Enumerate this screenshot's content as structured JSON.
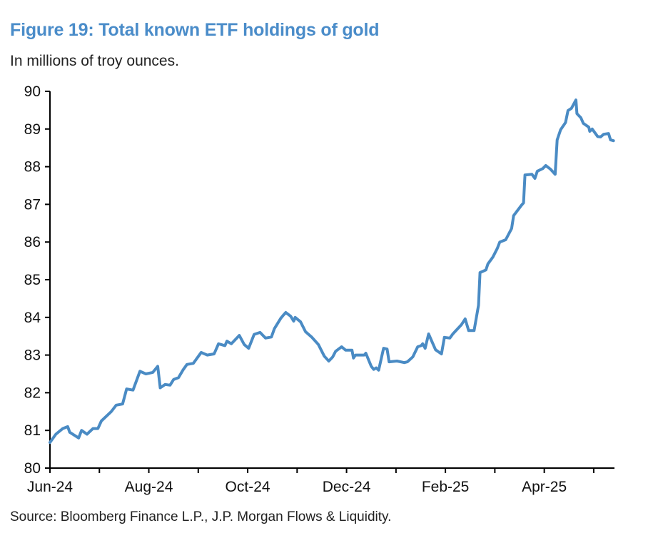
{
  "chart_data": {
    "type": "line",
    "title": "Figure 19: Total known ETF holdings of gold",
    "subtitle": "In millions of troy ounces.",
    "source": "Source: Bloomberg Finance L.P., J.P. Morgan Flows & Liquidity.",
    "xlabel": "",
    "ylabel": "",
    "x_unit": "months since Jun-24",
    "xlim": [
      0,
      11.42
    ],
    "ylim": [
      80,
      90
    ],
    "grid": false,
    "legend": "none",
    "line_color": "#4a8bc4",
    "title_color": "#4a8cc9",
    "y_ticks": [
      "80",
      "81",
      "82",
      "83",
      "84",
      "85",
      "86",
      "87",
      "88",
      "89",
      "90"
    ],
    "x_ticks": [
      {
        "value": 0,
        "label": "Jun-24"
      },
      {
        "value": 2,
        "label": "Aug-24"
      },
      {
        "value": 4,
        "label": "Oct-24"
      },
      {
        "value": 6,
        "label": "Dec-24"
      },
      {
        "value": 8,
        "label": "Feb-25"
      },
      {
        "value": 10,
        "label": "Apr-25"
      }
    ],
    "series": [
      {
        "name": "Total known ETF holdings of gold",
        "x": [
          0,
          0.12,
          0.26,
          0.36,
          0.4,
          0.58,
          0.64,
          0.75,
          0.87,
          0.97,
          1.04,
          1.24,
          1.34,
          1.47,
          1.55,
          1.68,
          1.82,
          1.94,
          2.08,
          2.18,
          2.23,
          2.33,
          2.43,
          2.5,
          2.6,
          2.69,
          2.77,
          2.9,
          3.06,
          3.18,
          3.32,
          3.41,
          3.54,
          3.58,
          3.67,
          3.83,
          3.93,
          4.02,
          4.13,
          4.25,
          4.36,
          4.48,
          4.54,
          4.67,
          4.73,
          4.77,
          4.87,
          4.93,
          4.96,
          5.07,
          5.17,
          5.3,
          5.43,
          5.55,
          5.64,
          5.72,
          5.78,
          5.9,
          5.98,
          6.11,
          6.14,
          6.18,
          6.36,
          6.39,
          6.5,
          6.55,
          6.6,
          6.65,
          6.75,
          6.82,
          6.86,
          7.02,
          7.17,
          7.23,
          7.34,
          7.44,
          7.51,
          7.54,
          7.59,
          7.66,
          7.73,
          7.8,
          7.92,
          7.98,
          8.09,
          8.15,
          8.32,
          8.4,
          8.47,
          8.58,
          8.67,
          8.7,
          8.82,
          8.86,
          8.96,
          9.05,
          9.1,
          9.22,
          9.34,
          9.38,
          9.54,
          9.58,
          9.61,
          9.75,
          9.81,
          9.86,
          9.97,
          10.03,
          10.12,
          10.22,
          10.26,
          10.33,
          10.43,
          10.48,
          10.55,
          10.64,
          10.66,
          10.74,
          10.79,
          10.9,
          10.92,
          10.97,
          11.08,
          11.14,
          11.2,
          11.3,
          11.34,
          11.4
        ],
        "y": [
          80.68,
          80.9,
          81.05,
          81.1,
          80.95,
          80.8,
          81.0,
          80.9,
          81.05,
          81.05,
          81.25,
          81.5,
          81.67,
          81.7,
          82.1,
          82.07,
          82.57,
          82.5,
          82.54,
          82.7,
          82.13,
          82.22,
          82.2,
          82.35,
          82.4,
          82.6,
          82.75,
          82.78,
          83.07,
          83.0,
          83.03,
          83.3,
          83.25,
          83.37,
          83.3,
          83.52,
          83.28,
          83.18,
          83.55,
          83.6,
          83.45,
          83.48,
          83.7,
          83.98,
          84.07,
          84.13,
          84.03,
          83.9,
          84.0,
          83.88,
          83.62,
          83.47,
          83.28,
          82.97,
          82.84,
          82.95,
          83.1,
          83.22,
          83.13,
          83.13,
          82.92,
          83.0,
          83.0,
          83.05,
          82.7,
          82.62,
          82.66,
          82.6,
          83.18,
          83.16,
          82.82,
          82.84,
          82.8,
          82.82,
          82.95,
          83.22,
          83.25,
          83.3,
          83.18,
          83.56,
          83.35,
          83.14,
          83.03,
          83.47,
          83.45,
          83.56,
          83.8,
          83.96,
          83.65,
          83.65,
          84.32,
          85.19,
          85.26,
          85.42,
          85.6,
          85.83,
          86.0,
          86.06,
          86.36,
          86.7,
          86.98,
          87.04,
          87.78,
          87.8,
          87.69,
          87.88,
          87.95,
          88.03,
          87.94,
          87.8,
          88.71,
          88.98,
          89.17,
          89.49,
          89.55,
          89.77,
          89.41,
          89.3,
          89.15,
          89.05,
          88.94,
          89.0,
          88.8,
          88.79,
          88.86,
          88.88,
          88.71,
          88.69
        ]
      }
    ]
  }
}
